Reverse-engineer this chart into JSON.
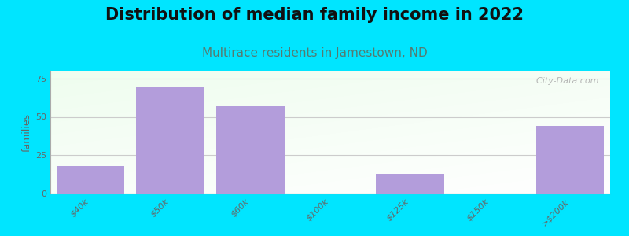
{
  "title": "Distribution of median family income in 2022",
  "subtitle": "Multirace residents in Jamestown, ND",
  "categories": [
    "$40k",
    "$50k",
    "$60k",
    "$100k",
    "$125k",
    "$150k",
    ">$200k"
  ],
  "values": [
    18,
    70,
    57,
    0,
    13,
    0,
    44
  ],
  "bar_color": "#b39ddb",
  "ylabel": "families",
  "ylim": [
    0,
    80
  ],
  "yticks": [
    0,
    25,
    50,
    75
  ],
  "background_outer": "#00e5ff",
  "title_fontsize": 15,
  "title_color": "#111111",
  "subtitle_fontsize": 11,
  "subtitle_color": "#557a70",
  "watermark": "  City-Data.com",
  "tick_label_color": "#666666",
  "tick_label_fontsize": 8,
  "ylabel_fontsize": 9,
  "ylabel_color": "#666666",
  "grid_color": "#cccccc",
  "spine_color": "#aaaaaa"
}
